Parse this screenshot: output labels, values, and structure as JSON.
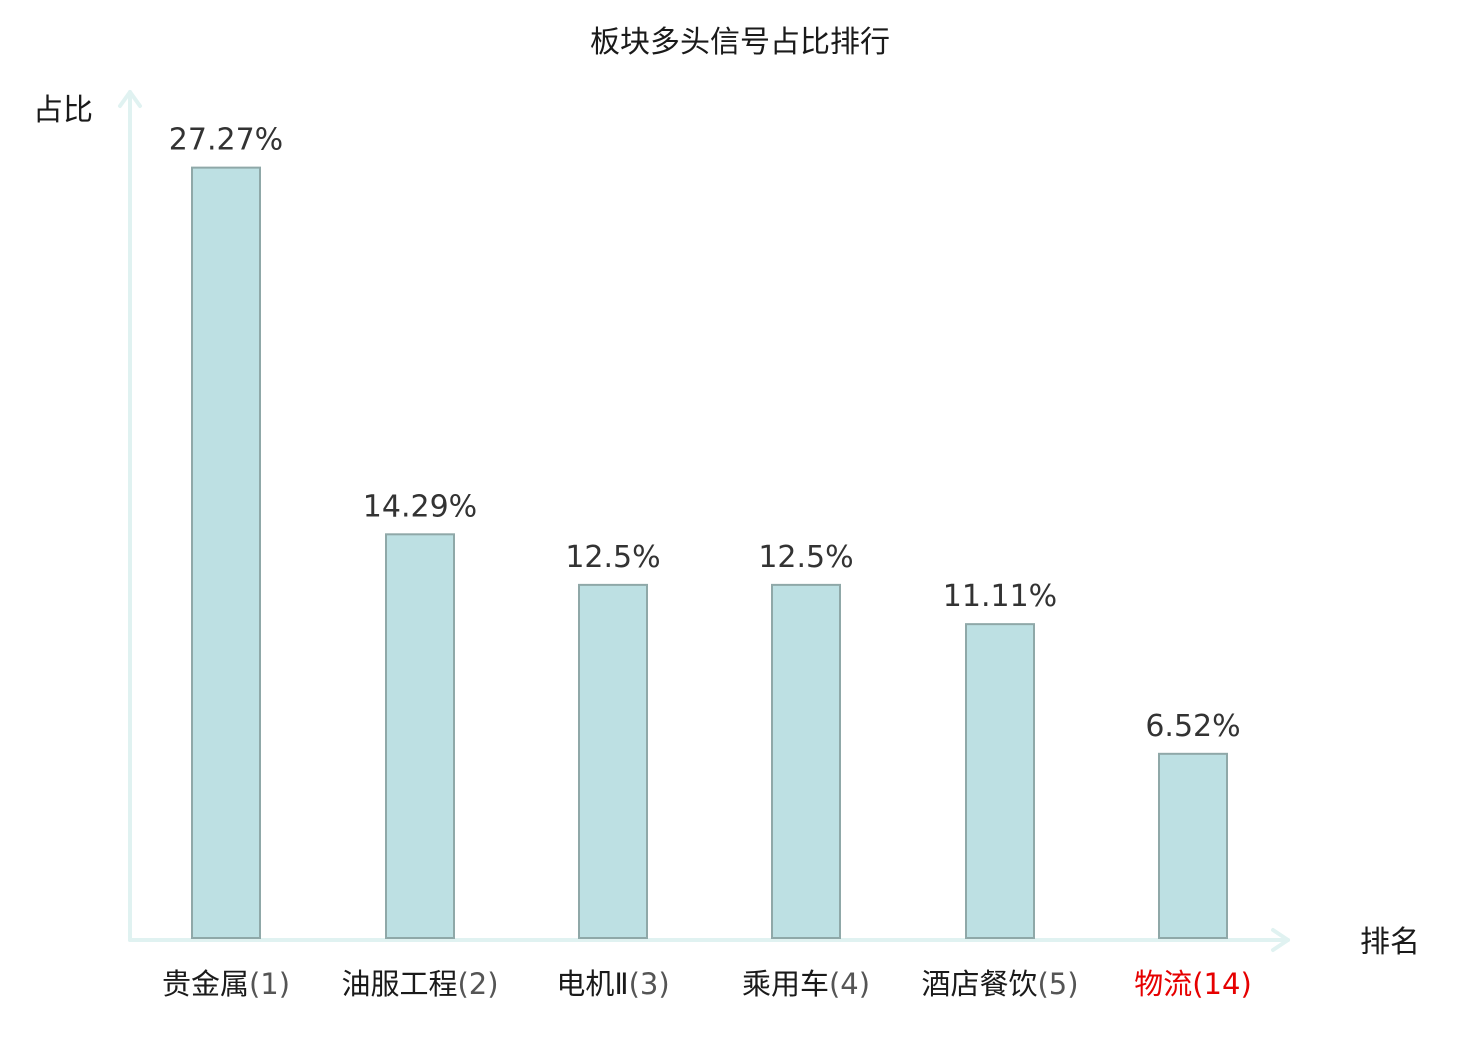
{
  "chart_data": {
    "type": "bar",
    "title": "板块多头信号占比排行",
    "xlabel": "排名",
    "ylabel": "占比",
    "categories": [
      {
        "name": "贵金属",
        "rank": "(1)",
        "highlight": false
      },
      {
        "name": "油服工程",
        "rank": "(2)",
        "highlight": false
      },
      {
        "name": "电机Ⅱ",
        "rank": "(3)",
        "highlight": false
      },
      {
        "name": "乘用车",
        "rank": "(4)",
        "highlight": false
      },
      {
        "name": "酒店餐饮",
        "rank": "(5)",
        "highlight": false
      },
      {
        "name": "物流",
        "rank": "(14)",
        "highlight": true
      }
    ],
    "values": [
      27.27,
      14.29,
      12.5,
      12.5,
      11.11,
      6.52
    ],
    "value_labels": [
      "27.27%",
      "14.29%",
      "12.5%",
      "12.5%",
      "11.11%",
      "6.52%"
    ],
    "ylim": [
      0,
      30
    ],
    "grid": false,
    "legend": "none"
  },
  "colors": {
    "bar_fill": "#bde0e3",
    "bar_stroke": "#8fa8a8",
    "axis": "#e0f2f1",
    "text": "#1a1a1a",
    "name_text": "#1a1a1a",
    "rank_text": "#555555",
    "highlight": "#e60000"
  }
}
